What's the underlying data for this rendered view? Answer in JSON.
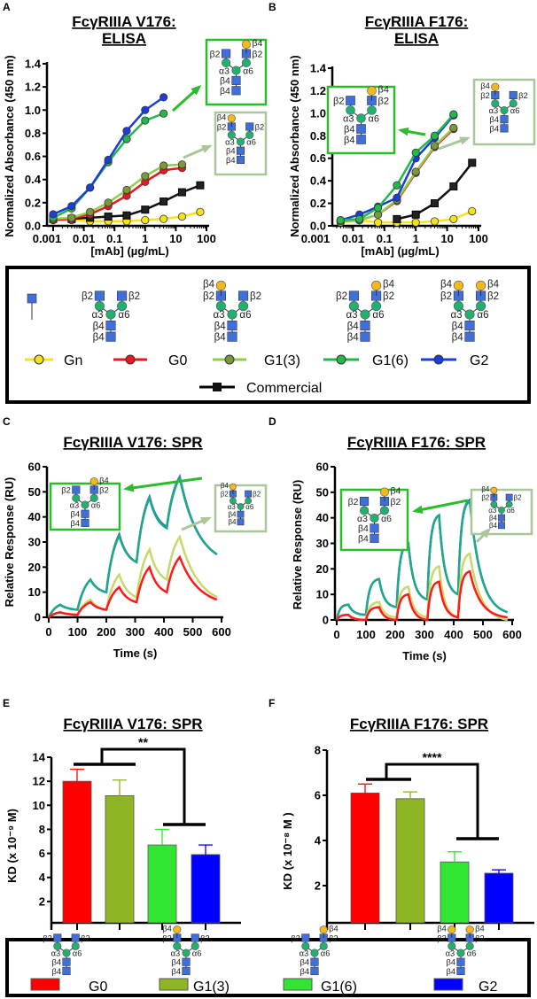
{
  "colors": {
    "Gn": "#f5e21b",
    "G0": "#e8191e",
    "G1(3)": "#8fce4c",
    "G1(6)": "#22b84a",
    "G2": "#1b3ed6",
    "Commercial": "#111111",
    "glcnac": "#3f6fd8",
    "mannose": "#20b070",
    "galactose": "#f2b81c",
    "inset_dark": "#2bbb2b",
    "inset_light": "#a9c79a"
  },
  "glycan_labels": {
    "b2": "β2",
    "b4": "β4",
    "a3": "α3",
    "a6": "α6"
  },
  "legend_top": {
    "items": [
      "Gn",
      "G0",
      "G1(3)",
      "G1(6)",
      "G2"
    ],
    "commercial": "Commercial"
  },
  "legend_bottom": {
    "items": [
      "G0",
      "G1(3)",
      "G1(6)",
      "G2"
    ],
    "bar_colors": [
      "#ff0000",
      "#8db524",
      "#33e533",
      "#0000ff"
    ]
  },
  "chart_data": [
    {
      "panel": "A",
      "type": "line",
      "title_line1": "FcγRIIIA V176:",
      "title_line2": "ELISA",
      "xlabel": "[mAb] (µg/mL)",
      "ylabel": "Normalized Absorbance (450 nm)",
      "xscale": "log",
      "xlim": [
        0.001,
        100
      ],
      "ylim": [
        0,
        1.4
      ],
      "xticks": [
        "0.001",
        "0.01",
        "0.1",
        "1",
        "10",
        "100"
      ],
      "yticks": [
        "0.0",
        "0.2",
        "0.4",
        "0.6",
        "0.8",
        "1.0",
        "1.2",
        "1.4"
      ],
      "x": [
        0.001,
        0.004,
        0.016,
        0.0625,
        0.25,
        1,
        4,
        16,
        62.5
      ],
      "series": [
        {
          "name": "Gn",
          "values": [
            0.05,
            0.05,
            0.04,
            0.04,
            0.04,
            0.05,
            0.06,
            0.08,
            0.12
          ]
        },
        {
          "name": "Commercial",
          "values": [
            0.06,
            0.06,
            0.07,
            0.08,
            0.09,
            0.14,
            0.21,
            0.29,
            0.35
          ]
        },
        {
          "name": "G0",
          "values": [
            0.05,
            0.06,
            0.1,
            0.17,
            0.26,
            0.38,
            0.48,
            0.5,
            null
          ]
        },
        {
          "name": "G1(3)",
          "values": [
            0.06,
            0.07,
            0.12,
            0.2,
            0.31,
            0.43,
            0.52,
            0.53,
            null
          ]
        },
        {
          "name": "G1(6)",
          "values": [
            0.07,
            0.15,
            0.33,
            0.55,
            0.75,
            0.91,
            0.97,
            null,
            null
          ]
        },
        {
          "name": "G2",
          "values": [
            0.1,
            0.17,
            0.33,
            0.57,
            0.82,
            1.0,
            1.11,
            null,
            null
          ]
        }
      ]
    },
    {
      "panel": "B",
      "type": "line",
      "title_line1": "FcγRIIIA F176:",
      "title_line2": "ELISA",
      "xlabel": "[mAb] (µg/mL)",
      "ylabel": "Normalized Absorbance (450 nm)",
      "xscale": "log",
      "xlim": [
        0.001,
        100
      ],
      "ylim": [
        0,
        1.4
      ],
      "xticks": [
        "0.001",
        "0.01",
        "0.1",
        "1",
        "10",
        "100"
      ],
      "yticks": [
        "0.0",
        "0.2",
        "0.4",
        "0.6",
        "0.8",
        "1.0",
        "1.2",
        "1.4"
      ],
      "x": [
        0.004,
        0.016,
        0.0625,
        0.25,
        1,
        4,
        16,
        62.5
      ],
      "series": [
        {
          "name": "Gn",
          "values": [
            0.03,
            0.05,
            0.03,
            0.03,
            0.03,
            0.04,
            0.06,
            0.13
          ]
        },
        {
          "name": "Commercial",
          "values": [
            null,
            null,
            null,
            0.06,
            0.1,
            0.2,
            0.35,
            0.56
          ]
        },
        {
          "name": "G0",
          "values": [
            0.04,
            0.05,
            0.1,
            0.22,
            0.47,
            0.7,
            0.86,
            null
          ]
        },
        {
          "name": "G1(3)",
          "values": [
            0.04,
            0.05,
            0.1,
            0.23,
            0.48,
            0.71,
            0.87,
            null
          ]
        },
        {
          "name": "G2",
          "values": [
            0.05,
            0.1,
            0.17,
            0.25,
            0.6,
            0.78,
            0.98,
            null
          ]
        },
        {
          "name": "G1(6)",
          "values": [
            0.05,
            0.06,
            0.16,
            0.36,
            0.65,
            0.8,
            0.99,
            null
          ]
        }
      ]
    },
    {
      "panel": "C",
      "type": "line",
      "title": "FcγRIIIA V176: SPR",
      "xlabel": "Time (s)",
      "ylabel": "Relative Response (RU)",
      "xlim": [
        0,
        600
      ],
      "ylim": [
        0,
        60
      ],
      "xticks": [
        "0",
        "100",
        "200",
        "300",
        "400",
        "500",
        "600"
      ],
      "yticks": [
        "0",
        "10",
        "20",
        "30",
        "40",
        "50",
        "60"
      ],
      "injection_start_s": [
        0,
        100,
        200,
        305,
        410
      ],
      "injection_end_s": [
        40,
        145,
        245,
        350,
        455
      ],
      "end_s": 585,
      "series": [
        {
          "name": "G2",
          "start_values": [
            0,
            3,
            10,
            22,
            36
          ],
          "peak_values": [
            5,
            15,
            33,
            48,
            56
          ],
          "end_value": 25
        },
        {
          "name": "G1(6)",
          "start_values": [
            0,
            3,
            10,
            22,
            35.5
          ],
          "peak_values": [
            5,
            15,
            32.5,
            47.5,
            55.5
          ],
          "end_value": 25
        },
        {
          "name": "G1(3)",
          "start_values": [
            0,
            1,
            3,
            8,
            15
          ],
          "peak_values": [
            2,
            7,
            17,
            27,
            32
          ],
          "end_value": 8
        },
        {
          "name": "G0",
          "start_values": [
            0,
            1,
            3,
            6,
            10
          ],
          "peak_values": [
            2,
            6,
            12,
            20,
            24
          ],
          "end_value": 7
        }
      ]
    },
    {
      "panel": "D",
      "type": "line",
      "title": "FcγRIIIA F176: SPR",
      "xlabel": "Time (s)",
      "ylabel": "Relative Response (RU)",
      "xlim": [
        0,
        600
      ],
      "ylim": [
        0,
        60
      ],
      "xticks": [
        "0",
        "100",
        "200",
        "300",
        "400",
        "500",
        "600"
      ],
      "yticks": [
        "0",
        "10",
        "20",
        "30",
        "40",
        "50",
        "60"
      ],
      "injection_start_s": [
        0,
        100,
        205,
        310,
        415
      ],
      "injection_end_s": [
        40,
        145,
        245,
        350,
        455
      ],
      "end_s": 585,
      "series": [
        {
          "name": "G2",
          "start_values": [
            0,
            2,
            5,
            8,
            10
          ],
          "peak_values": [
            6,
            16,
            30,
            41,
            47
          ],
          "end_value": 3
        },
        {
          "name": "G1(6)",
          "start_values": [
            0,
            2,
            5,
            8,
            10
          ],
          "peak_values": [
            6,
            16,
            30,
            41,
            46.5
          ],
          "end_value": 3
        },
        {
          "name": "G1(3)",
          "start_values": [
            0,
            0,
            1,
            1,
            1
          ],
          "peak_values": [
            2,
            7,
            13,
            21,
            26
          ],
          "end_value": 0
        },
        {
          "name": "G0",
          "start_values": [
            0,
            0,
            0,
            0,
            1
          ],
          "peak_values": [
            2,
            5,
            10,
            15,
            19
          ],
          "end_value": 1
        }
      ]
    },
    {
      "panel": "E",
      "type": "bar",
      "title": "FcγRIIIA V176: SPR",
      "ylabel": "KD (x 10⁻⁹ M)",
      "ylim": [
        0,
        14
      ],
      "yticks": [
        "2",
        "4",
        "6",
        "8",
        "10",
        "12",
        "14"
      ],
      "categories": [
        "G0",
        "G1(3)",
        "G1(6)",
        "G2"
      ],
      "values": [
        12.0,
        10.8,
        6.7,
        5.9
      ],
      "errors": [
        1.0,
        1.3,
        1.3,
        0.8
      ],
      "significance": "**"
    },
    {
      "panel": "F",
      "type": "bar",
      "title": "FcγRIIIA F176: SPR",
      "ylabel": "KD (x 10⁻⁸ M )",
      "ylim": [
        0,
        8
      ],
      "yticks": [
        "2",
        "4",
        "6",
        "8"
      ],
      "categories": [
        "G0",
        "G1(3)",
        "G1(6)",
        "G2"
      ],
      "values": [
        6.1,
        5.85,
        3.05,
        2.55
      ],
      "errors": [
        0.4,
        0.3,
        0.45,
        0.15
      ],
      "significance": "****"
    }
  ]
}
